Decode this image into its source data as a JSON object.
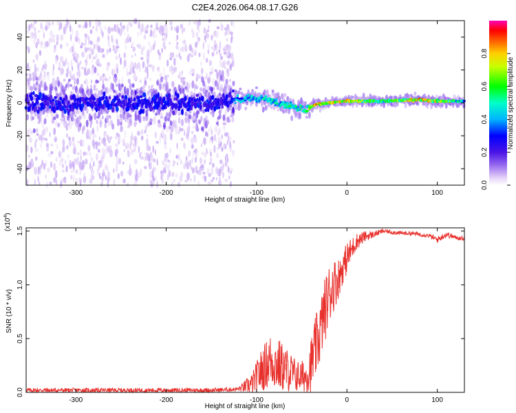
{
  "figure_title": "C2E4.2026.064.08.17.G26",
  "chart_data": [
    {
      "type": "heatmap",
      "panel": "spectrogram",
      "title": "C2E4.2026.064.08.17.G26",
      "xlabel": "Height of straight line (km)",
      "ylabel": "Frequency (Hz)",
      "xlim": [
        -355,
        130
      ],
      "ylim": [
        -50,
        50
      ],
      "x_ticks": [
        -300,
        -200,
        -100,
        0,
        100
      ],
      "x_tick_labels": [
        "-300",
        "-200",
        "-100",
        "0",
        "100"
      ],
      "y_ticks": [
        -40,
        -20,
        0,
        20,
        40
      ],
      "y_tick_labels": [
        "-40",
        "-20",
        "0",
        "20",
        "40"
      ],
      "colorbar": {
        "label": "Normalized spectral amplitude",
        "range": [
          0,
          1
        ],
        "ticks": [
          0.0,
          0.2,
          0.4,
          0.6,
          0.8
        ],
        "tick_labels": [
          "0.0",
          "0.2",
          "0.4",
          "0.6",
          "0.8"
        ]
      },
      "ridge": {
        "description_points_x": [
          -355,
          -300,
          -250,
          -200,
          -150,
          -120,
          -100,
          -80,
          -60,
          -45,
          -35,
          -20,
          0,
          40,
          80,
          100,
          130
        ],
        "center_freq": [
          0,
          0,
          0,
          0,
          0,
          2,
          3,
          1,
          -2,
          -4,
          -1,
          0,
          1,
          1,
          2,
          1,
          1
        ],
        "peak_amplitude": [
          0.25,
          0.25,
          0.25,
          0.25,
          0.3,
          0.45,
          0.5,
          0.55,
          0.55,
          0.6,
          0.9,
          0.85,
          0.85,
          0.6,
          0.9,
          0.8,
          0.5
        ]
      }
    },
    {
      "type": "line",
      "panel": "snr",
      "xlabel": "Height of straight line (km)",
      "ylabel": "SNR (10 * v/v)",
      "scale_label": "(x10",
      "scale_exponent": "4",
      "scale_suffix": ")",
      "xlim": [
        -355,
        130
      ],
      "ylim": [
        0,
        1.53
      ],
      "x_ticks": [
        -300,
        -200,
        -100,
        0,
        100
      ],
      "x_tick_labels": [
        "-300",
        "-200",
        "-100",
        "0",
        "100"
      ],
      "y_ticks": [
        0.0,
        0.5,
        1.0,
        1.5
      ],
      "y_tick_labels": [
        "0.0",
        "0.5",
        "1.0",
        "1.5"
      ],
      "color": "#e8302c",
      "series": [
        {
          "name": "SNR",
          "x": [
            -355,
            -300,
            -250,
            -200,
            -150,
            -120,
            -105,
            -95,
            -85,
            -75,
            -65,
            -55,
            -45,
            -40,
            -35,
            -30,
            -25,
            -20,
            -15,
            -10,
            -5,
            0,
            10,
            20,
            30,
            40,
            50,
            60,
            70,
            80,
            90,
            100,
            110,
            120,
            130
          ],
          "y": [
            0.02,
            0.02,
            0.02,
            0.02,
            0.02,
            0.03,
            0.08,
            0.2,
            0.3,
            0.25,
            0.2,
            0.15,
            0.15,
            0.25,
            0.4,
            0.55,
            0.75,
            0.9,
            1.0,
            1.05,
            1.15,
            1.25,
            1.4,
            1.45,
            1.47,
            1.5,
            1.49,
            1.48,
            1.48,
            1.47,
            1.46,
            1.42,
            1.47,
            1.44,
            1.43
          ],
          "noise": [
            0.02,
            0.02,
            0.02,
            0.02,
            0.02,
            0.02,
            0.1,
            0.2,
            0.25,
            0.25,
            0.2,
            0.15,
            0.15,
            0.25,
            0.3,
            0.3,
            0.3,
            0.3,
            0.25,
            0.2,
            0.15,
            0.15,
            0.08,
            0.05,
            0.03,
            0.02,
            0.02,
            0.02,
            0.02,
            0.02,
            0.02,
            0.03,
            0.03,
            0.02,
            0.02
          ]
        }
      ]
    }
  ]
}
